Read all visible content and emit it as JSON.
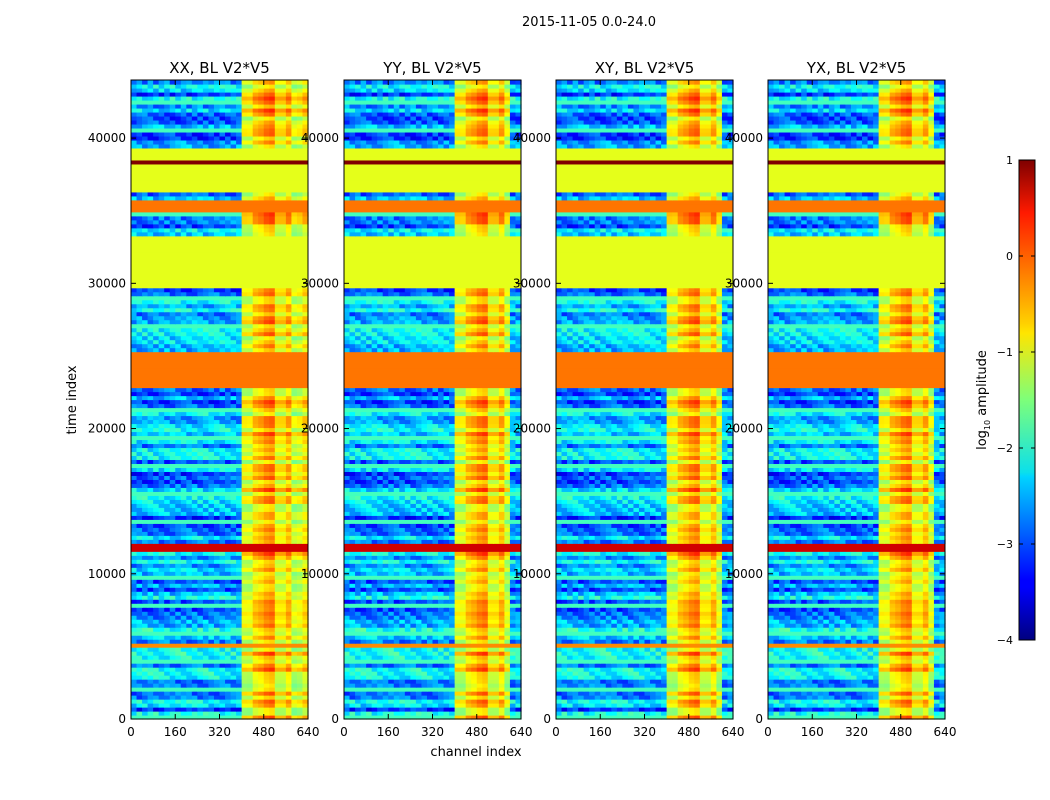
{
  "chart_data": {
    "type": "heatmap",
    "suptitle": "2015-11-05 0.0-24.0",
    "xlabel": "channel index",
    "ylabel": "time index",
    "xlim": [
      0,
      640
    ],
    "ylim": [
      0,
      44000
    ],
    "xticks": [
      0,
      160,
      320,
      480,
      640
    ],
    "yticks": [
      0,
      10000,
      20000,
      30000,
      40000
    ],
    "panels": [
      {
        "title": "XX, BL V2*V5",
        "band_start": 400,
        "band_end": 640
      },
      {
        "title": "YY, BL V2*V5",
        "band_start": 400,
        "band_end": 600
      },
      {
        "title": "XY, BL V2*V5",
        "band_start": 400,
        "band_end": 600
      },
      {
        "title": "YX, BL V2*V5",
        "band_start": 400,
        "band_end": 600
      }
    ],
    "colorbar": {
      "label": "log10 amplitude",
      "label_base": "log",
      "label_sub": "10",
      "label_rest": " amplitude",
      "min": -4,
      "max": 1,
      "ticks": [
        -4,
        -3,
        -2,
        -1,
        0,
        1
      ],
      "tick_labels": [
        "−4",
        "−3",
        "−2",
        "−1",
        "0",
        "1"
      ],
      "colormap": "jet"
    },
    "flagged_ranges": [
      {
        "from": 29500,
        "to": 33000,
        "value": -1.0
      },
      {
        "from": 36100,
        "to": 39200,
        "value": -1.0
      },
      {
        "from": 38100,
        "to": 38400,
        "value": 1.0
      },
      {
        "from": 22800,
        "to": 25200,
        "value": -0.2
      },
      {
        "from": 34800,
        "to": 35600,
        "value": -0.2
      },
      {
        "from": 11500,
        "to": 11800,
        "value": 0.6
      },
      {
        "from": 4800,
        "to": 5000,
        "value": -0.3
      }
    ]
  }
}
